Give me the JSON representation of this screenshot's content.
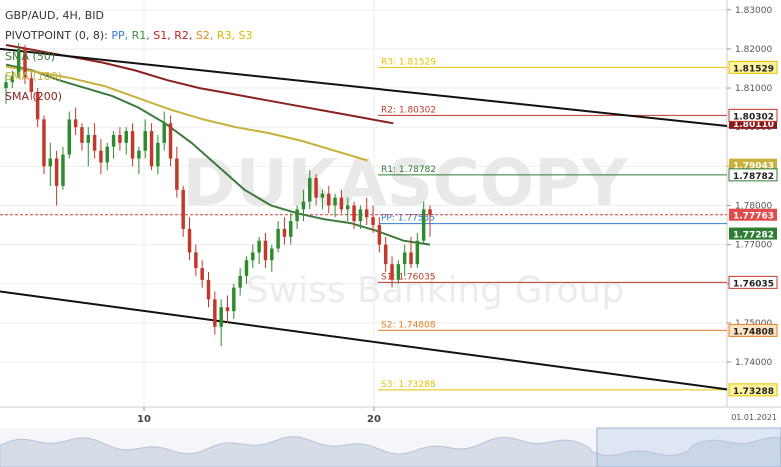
{
  "header": {
    "symbol_line": "GBP/AUD, 4H, BID",
    "pivot_prefix": "PIVOTPOINT (0, 8):",
    "pivot_items": [
      {
        "label": "PP,",
        "color": "#2f7dd6"
      },
      {
        "label": "R1,",
        "color": "#3f8f3f"
      },
      {
        "label": "S1,",
        "color": "#c02020"
      },
      {
        "label": "R2,",
        "color": "#c02020"
      },
      {
        "label": "S2,",
        "color": "#e88a1a"
      },
      {
        "label": "R3,",
        "color": "#d8b800"
      },
      {
        "label": "S3",
        "color": "#d8b800"
      }
    ],
    "sma_labels": [
      "SMA (50)",
      "SMA (100)",
      "SMA (200)"
    ]
  },
  "watermark": {
    "brand": "DUKASCOPY",
    "tagline": "Swiss Banking Group"
  },
  "chart_data": {
    "type": "candlestick",
    "symbol": "GBP/AUD",
    "timeframe": "4H",
    "price_side": "BID",
    "x_tick_labels": [
      "10",
      "20"
    ],
    "date_label": "01.01.2021",
    "y_ticks": [
      "1.83000",
      "1.82000",
      "1.81000",
      "1.80000",
      "1.79000",
      "1.78000",
      "1.77000",
      "1.76000",
      "1.75000",
      "1.74000"
    ],
    "y_range": [
      1.7285,
      1.8325
    ],
    "current_price": "1.77763",
    "pivot_levels": [
      {
        "name": "R3",
        "label": "R3: 1.81529",
        "value": 1.81529,
        "badge": "1.81529",
        "color": "#e6c200"
      },
      {
        "name": "R2",
        "label": "R2: 1.80302",
        "value": 1.80302,
        "badge": "1.80302",
        "color": "#c0392b"
      },
      {
        "name": "R1",
        "label": "R1: 1.78782",
        "value": 1.78782,
        "badge": "1.78782",
        "color": "#2e7d32"
      },
      {
        "name": "PP",
        "label": "PP: 1.77535",
        "value": 1.77535,
        "badge": "",
        "color": "#2f7dd6"
      },
      {
        "name": "S1",
        "label": "S1: 1.76035",
        "value": 1.76035,
        "badge": "1.76035",
        "color": "#c0392b"
      },
      {
        "name": "S2",
        "label": "S2: 1.74808",
        "value": 1.74808,
        "badge": "1.74808",
        "color": "#e67e22"
      },
      {
        "name": "S3",
        "label": "S3: 1.73288",
        "value": 1.73288,
        "badge": "1.73288",
        "color": "#e6c200"
      }
    ],
    "sma_last_badges": [
      {
        "name": "SMA (50)",
        "value": "1.77282",
        "color": "#2e7d32"
      },
      {
        "name": "SMA (100)",
        "value": "1.79043",
        "color": "#c8b03a"
      },
      {
        "name": "SMA (200)",
        "value": "1.80110",
        "color": "#8b1a1a"
      }
    ],
    "sma_series": [
      {
        "name": "SMA (50)",
        "color": "#3c7a3c",
        "values": [
          1.816,
          1.8145,
          1.812,
          1.81,
          1.808,
          1.805,
          1.801,
          1.796,
          1.79,
          1.784,
          1.78,
          1.778,
          1.7765,
          1.7755,
          1.7735,
          1.771,
          1.77
        ]
      },
      {
        "name": "SMA (100)",
        "color": "#c8b03a",
        "values": [
          1.8155,
          1.814,
          1.8125,
          1.8105,
          1.8075,
          1.8045,
          1.802,
          1.8,
          1.7985,
          1.7965,
          1.794,
          1.7915
        ]
      },
      {
        "name": "SMA (200)",
        "color": "#8b2020",
        "values": [
          1.821,
          1.8195,
          1.818,
          1.8165,
          1.8145,
          1.812,
          1.81,
          1.8085,
          1.807,
          1.8055,
          1.804,
          1.8025,
          1.801
        ]
      }
    ],
    "trend_lines": [
      {
        "name": "upper",
        "start": 1.82,
        "end": 1.8003
      },
      {
        "name": "lower",
        "start": 1.758,
        "end": 1.733
      }
    ],
    "candles": [
      {
        "o": 1.81,
        "h": 1.8135,
        "l": 1.806,
        "c": 1.8115
      },
      {
        "o": 1.8115,
        "h": 1.8145,
        "l": 1.81,
        "c": 1.813
      },
      {
        "o": 1.813,
        "h": 1.8215,
        "l": 1.8125,
        "c": 1.82
      },
      {
        "o": 1.82,
        "h": 1.821,
        "l": 1.811,
        "c": 1.8125
      },
      {
        "o": 1.8125,
        "h": 1.814,
        "l": 1.807,
        "c": 1.809
      },
      {
        "o": 1.809,
        "h": 1.81,
        "l": 1.8,
        "c": 1.802
      },
      {
        "o": 1.802,
        "h": 1.803,
        "l": 1.788,
        "c": 1.79
      },
      {
        "o": 1.79,
        "h": 1.796,
        "l": 1.785,
        "c": 1.792
      },
      {
        "o": 1.792,
        "h": 1.794,
        "l": 1.78,
        "c": 1.785
      },
      {
        "o": 1.785,
        "h": 1.795,
        "l": 1.784,
        "c": 1.793
      },
      {
        "o": 1.793,
        "h": 1.804,
        "l": 1.792,
        "c": 1.802
      },
      {
        "o": 1.802,
        "h": 1.805,
        "l": 1.798,
        "c": 1.8
      },
      {
        "o": 1.8,
        "h": 1.801,
        "l": 1.794,
        "c": 1.796
      },
      {
        "o": 1.796,
        "h": 1.8,
        "l": 1.79,
        "c": 1.798
      },
      {
        "o": 1.798,
        "h": 1.801,
        "l": 1.792,
        "c": 1.794
      },
      {
        "o": 1.794,
        "h": 1.797,
        "l": 1.788,
        "c": 1.791
      },
      {
        "o": 1.791,
        "h": 1.796,
        "l": 1.789,
        "c": 1.795
      },
      {
        "o": 1.795,
        "h": 1.799,
        "l": 1.792,
        "c": 1.798
      },
      {
        "o": 1.798,
        "h": 1.8,
        "l": 1.794,
        "c": 1.796
      },
      {
        "o": 1.796,
        "h": 1.8,
        "l": 1.793,
        "c": 1.799
      },
      {
        "o": 1.799,
        "h": 1.801,
        "l": 1.79,
        "c": 1.792
      },
      {
        "o": 1.792,
        "h": 1.795,
        "l": 1.788,
        "c": 1.794
      },
      {
        "o": 1.794,
        "h": 1.802,
        "l": 1.792,
        "c": 1.799
      },
      {
        "o": 1.799,
        "h": 1.801,
        "l": 1.789,
        "c": 1.79
      },
      {
        "o": 1.79,
        "h": 1.798,
        "l": 1.788,
        "c": 1.796
      },
      {
        "o": 1.796,
        "h": 1.804,
        "l": 1.794,
        "c": 1.801
      },
      {
        "o": 1.801,
        "h": 1.803,
        "l": 1.79,
        "c": 1.792
      },
      {
        "o": 1.792,
        "h": 1.795,
        "l": 1.782,
        "c": 1.784
      },
      {
        "o": 1.784,
        "h": 1.785,
        "l": 1.772,
        "c": 1.774
      },
      {
        "o": 1.774,
        "h": 1.777,
        "l": 1.766,
        "c": 1.768
      },
      {
        "o": 1.768,
        "h": 1.77,
        "l": 1.762,
        "c": 1.764
      },
      {
        "o": 1.764,
        "h": 1.766,
        "l": 1.759,
        "c": 1.761
      },
      {
        "o": 1.761,
        "h": 1.763,
        "l": 1.754,
        "c": 1.756
      },
      {
        "o": 1.756,
        "h": 1.758,
        "l": 1.747,
        "c": 1.749
      },
      {
        "o": 1.749,
        "h": 1.756,
        "l": 1.744,
        "c": 1.754
      },
      {
        "o": 1.754,
        "h": 1.757,
        "l": 1.75,
        "c": 1.753
      },
      {
        "o": 1.753,
        "h": 1.76,
        "l": 1.751,
        "c": 1.759
      },
      {
        "o": 1.759,
        "h": 1.764,
        "l": 1.757,
        "c": 1.762
      },
      {
        "o": 1.762,
        "h": 1.767,
        "l": 1.76,
        "c": 1.766
      },
      {
        "o": 1.766,
        "h": 1.77,
        "l": 1.764,
        "c": 1.768
      },
      {
        "o": 1.768,
        "h": 1.772,
        "l": 1.765,
        "c": 1.771
      },
      {
        "o": 1.771,
        "h": 1.773,
        "l": 1.764,
        "c": 1.766
      },
      {
        "o": 1.766,
        "h": 1.77,
        "l": 1.763,
        "c": 1.769
      },
      {
        "o": 1.769,
        "h": 1.776,
        "l": 1.768,
        "c": 1.774
      },
      {
        "o": 1.774,
        "h": 1.777,
        "l": 1.77,
        "c": 1.772
      },
      {
        "o": 1.772,
        "h": 1.778,
        "l": 1.77,
        "c": 1.776
      },
      {
        "o": 1.776,
        "h": 1.78,
        "l": 1.774,
        "c": 1.779
      },
      {
        "o": 1.779,
        "h": 1.784,
        "l": 1.776,
        "c": 1.781
      },
      {
        "o": 1.781,
        "h": 1.789,
        "l": 1.779,
        "c": 1.787
      },
      {
        "o": 1.787,
        "h": 1.788,
        "l": 1.78,
        "c": 1.782
      },
      {
        "o": 1.782,
        "h": 1.784,
        "l": 1.779,
        "c": 1.783
      },
      {
        "o": 1.783,
        "h": 1.785,
        "l": 1.778,
        "c": 1.78
      },
      {
        "o": 1.78,
        "h": 1.783,
        "l": 1.777,
        "c": 1.782
      },
      {
        "o": 1.782,
        "h": 1.784,
        "l": 1.778,
        "c": 1.779
      },
      {
        "o": 1.779,
        "h": 1.782,
        "l": 1.776,
        "c": 1.78
      },
      {
        "o": 1.78,
        "h": 1.781,
        "l": 1.774,
        "c": 1.776
      },
      {
        "o": 1.776,
        "h": 1.78,
        "l": 1.774,
        "c": 1.779
      },
      {
        "o": 1.779,
        "h": 1.782,
        "l": 1.775,
        "c": 1.777
      },
      {
        "o": 1.777,
        "h": 1.78,
        "l": 1.773,
        "c": 1.775
      },
      {
        "o": 1.775,
        "h": 1.777,
        "l": 1.768,
        "c": 1.77
      },
      {
        "o": 1.77,
        "h": 1.772,
        "l": 1.763,
        "c": 1.765
      },
      {
        "o": 1.765,
        "h": 1.767,
        "l": 1.759,
        "c": 1.761
      },
      {
        "o": 1.761,
        "h": 1.766,
        "l": 1.76,
        "c": 1.765
      },
      {
        "o": 1.765,
        "h": 1.77,
        "l": 1.762,
        "c": 1.768
      },
      {
        "o": 1.768,
        "h": 1.772,
        "l": 1.764,
        "c": 1.765
      },
      {
        "o": 1.765,
        "h": 1.773,
        "l": 1.764,
        "c": 1.771
      },
      {
        "o": 1.771,
        "h": 1.781,
        "l": 1.77,
        "c": 1.779
      },
      {
        "o": 1.779,
        "h": 1.78,
        "l": 1.772,
        "c": 1.7776
      }
    ]
  }
}
